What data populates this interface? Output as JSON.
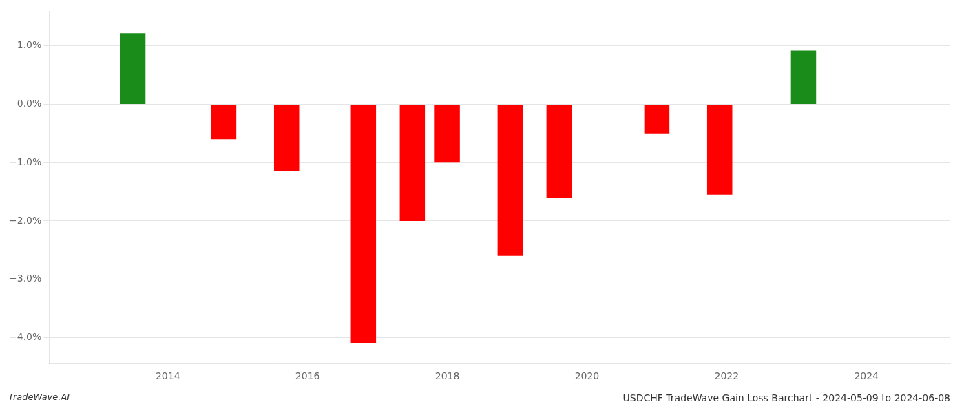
{
  "chart_data": {
    "type": "bar",
    "title": "USDCHF TradeWave Gain Loss Barchart - 2024-05-09 to 2024-06-08",
    "annotations": [
      "TradeWave.AI"
    ],
    "x": [
      2013.5,
      2014.8,
      2015.7,
      2016.8,
      2017.5,
      2018.0,
      2018.9,
      2019.6,
      2021.0,
      2021.9,
      2023.1
    ],
    "values": [
      1.22,
      -0.6,
      -1.15,
      -4.1,
      -2.0,
      -1.0,
      -2.6,
      -1.6,
      -0.5,
      -1.55,
      0.92
    ],
    "colors": [
      "#1a8c1a",
      "#ff0000",
      "#ff0000",
      "#ff0000",
      "#ff0000",
      "#ff0000",
      "#ff0000",
      "#ff0000",
      "#ff0000",
      "#ff0000",
      "#1a8c1a"
    ],
    "xlim": [
      2012.3,
      2025.2
    ],
    "xticks": [
      2014,
      2016,
      2018,
      2020,
      2022,
      2024
    ],
    "ylim": [
      -4.45,
      1.6
    ],
    "yticks": [
      {
        "value": 1.0,
        "label": "1.0%"
      },
      {
        "value": 0.0,
        "label": "0.0%"
      },
      {
        "value": -1.0,
        "label": "−1.0%"
      },
      {
        "value": -2.0,
        "label": "−2.0%"
      },
      {
        "value": -3.0,
        "label": "−3.0%"
      },
      {
        "value": -4.0,
        "label": "−4.0%"
      }
    ],
    "grid": "y"
  }
}
